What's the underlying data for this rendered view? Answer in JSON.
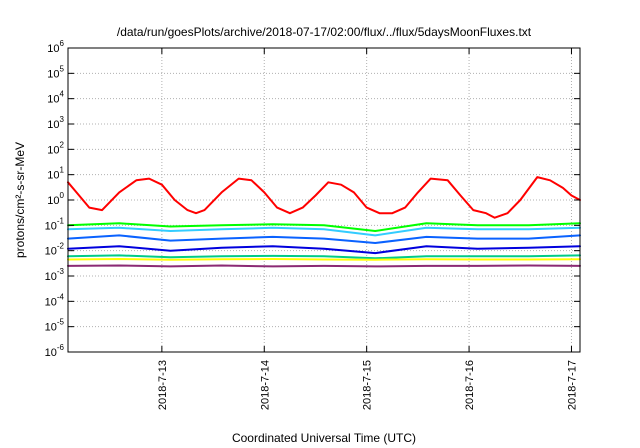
{
  "chart_data": {
    "type": "line",
    "title": "/data/run/goesPlots/archive/2018-07-17/02:00/flux/../flux/5daysMoonFluxes.txt",
    "xlabel": "Coordinated Universal Time (UTC)",
    "ylabel": "protons/cm²-s-sr-MeV",
    "y_scale": "log",
    "ylim": [
      "1e-6",
      "1e6"
    ],
    "xlim": [
      "2018-07-12 02:00",
      "2018-07-17 02:00"
    ],
    "x_tick_labels": [
      "2018-7-13",
      "2018-7-14",
      "2018-7-15",
      "2018-7-16",
      "2018-7-17"
    ],
    "grid": true,
    "series": [
      {
        "color": "#ff0000",
        "x": [
          "2018-07-12 02:00",
          "2018-07-12 04:00",
          "2018-07-12 07:00",
          "2018-07-12 10:00",
          "2018-07-12 14:00",
          "2018-07-12 18:00",
          "2018-07-12 21:00",
          "2018-07-13 00:00",
          "2018-07-13 03:00",
          "2018-07-13 06:00",
          "2018-07-13 08:00",
          "2018-07-13 10:00",
          "2018-07-13 14:00",
          "2018-07-13 18:00",
          "2018-07-13 21:00",
          "2018-07-14 00:00",
          "2018-07-14 03:00",
          "2018-07-14 06:00",
          "2018-07-14 09:00",
          "2018-07-14 12:00",
          "2018-07-14 15:00",
          "2018-07-14 18:00",
          "2018-07-14 21:00",
          "2018-07-15 00:00",
          "2018-07-15 03:00",
          "2018-07-15 06:00",
          "2018-07-15 09:00",
          "2018-07-15 12:00",
          "2018-07-15 15:00",
          "2018-07-15 19:00",
          "2018-07-15 22:00",
          "2018-07-16 01:00",
          "2018-07-16 04:00",
          "2018-07-16 06:00",
          "2018-07-16 09:00",
          "2018-07-16 12:00",
          "2018-07-16 16:00",
          "2018-07-16 19:00",
          "2018-07-16 22:00",
          "2018-07-17 00:00",
          "2018-07-17 02:00"
        ],
        "y": [
          5,
          2,
          0.5,
          0.4,
          2,
          6,
          7,
          4,
          1,
          0.4,
          0.3,
          0.4,
          2,
          7,
          6,
          2,
          0.5,
          0.3,
          0.5,
          1.5,
          5,
          4,
          2,
          0.5,
          0.3,
          0.3,
          0.5,
          2,
          7,
          6,
          1.5,
          0.4,
          0.3,
          0.2,
          0.3,
          1,
          8,
          6,
          3,
          1.5,
          1
        ]
      },
      {
        "color": "#00ff00",
        "x": [
          "2018-07-12 02:00",
          "2018-07-12 14:00",
          "2018-07-13 02:00",
          "2018-07-13 14:00",
          "2018-07-14 02:00",
          "2018-07-14 14:00",
          "2018-07-15 02:00",
          "2018-07-15 14:00",
          "2018-07-16 02:00",
          "2018-07-16 14:00",
          "2018-07-17 02:00"
        ],
        "y": [
          0.1,
          0.12,
          0.09,
          0.1,
          0.11,
          0.1,
          0.06,
          0.12,
          0.1,
          0.1,
          0.12
        ]
      },
      {
        "color": "#33ccff",
        "x": [
          "2018-07-12 02:00",
          "2018-07-12 14:00",
          "2018-07-13 02:00",
          "2018-07-13 14:00",
          "2018-07-14 02:00",
          "2018-07-14 14:00",
          "2018-07-15 02:00",
          "2018-07-15 14:00",
          "2018-07-16 02:00",
          "2018-07-16 14:00",
          "2018-07-17 02:00"
        ],
        "y": [
          0.07,
          0.08,
          0.06,
          0.07,
          0.08,
          0.07,
          0.04,
          0.08,
          0.07,
          0.07,
          0.08
        ]
      },
      {
        "color": "#0a62ff",
        "x": [
          "2018-07-12 02:00",
          "2018-07-12 14:00",
          "2018-07-13 02:00",
          "2018-07-13 14:00",
          "2018-07-14 02:00",
          "2018-07-14 14:00",
          "2018-07-15 02:00",
          "2018-07-15 14:00",
          "2018-07-16 02:00",
          "2018-07-16 14:00",
          "2018-07-17 02:00"
        ],
        "y": [
          0.03,
          0.04,
          0.025,
          0.03,
          0.035,
          0.03,
          0.02,
          0.035,
          0.03,
          0.03,
          0.04
        ]
      },
      {
        "color": "#0000dd",
        "x": [
          "2018-07-12 02:00",
          "2018-07-12 14:00",
          "2018-07-13 02:00",
          "2018-07-13 14:00",
          "2018-07-14 02:00",
          "2018-07-14 14:00",
          "2018-07-15 02:00",
          "2018-07-15 14:00",
          "2018-07-16 02:00",
          "2018-07-16 14:00",
          "2018-07-17 02:00"
        ],
        "y": [
          0.012,
          0.015,
          0.01,
          0.013,
          0.015,
          0.012,
          0.008,
          0.015,
          0.012,
          0.013,
          0.015
        ]
      },
      {
        "color": "#00cc88",
        "x": [
          "2018-07-12 02:00",
          "2018-07-12 14:00",
          "2018-07-13 02:00",
          "2018-07-13 14:00",
          "2018-07-14 02:00",
          "2018-07-14 14:00",
          "2018-07-15 02:00",
          "2018-07-15 14:00",
          "2018-07-16 02:00",
          "2018-07-16 14:00",
          "2018-07-17 02:00"
        ],
        "y": [
          0.006,
          0.0065,
          0.0055,
          0.006,
          0.0062,
          0.006,
          0.005,
          0.006,
          0.006,
          0.006,
          0.0065
        ]
      },
      {
        "color": "#ffff00",
        "x": [
          "2018-07-12 02:00",
          "2018-07-12 14:00",
          "2018-07-13 02:00",
          "2018-07-13 14:00",
          "2018-07-14 02:00",
          "2018-07-14 14:00",
          "2018-07-15 02:00",
          "2018-07-15 14:00",
          "2018-07-16 02:00",
          "2018-07-16 14:00",
          "2018-07-17 02:00"
        ],
        "y": [
          0.0045,
          0.0047,
          0.0044,
          0.0046,
          0.0047,
          0.0045,
          0.0044,
          0.0046,
          0.0045,
          0.0045,
          0.0046
        ]
      },
      {
        "color": "#8b2a74",
        "x": [
          "2018-07-12 02:00",
          "2018-07-12 14:00",
          "2018-07-13 02:00",
          "2018-07-13 14:00",
          "2018-07-14 02:00",
          "2018-07-14 14:00",
          "2018-07-15 02:00",
          "2018-07-15 14:00",
          "2018-07-16 02:00",
          "2018-07-16 14:00",
          "2018-07-17 02:00"
        ],
        "y": [
          0.0025,
          0.0026,
          0.0024,
          0.0026,
          0.0024,
          0.0025,
          0.0024,
          0.0025,
          0.0025,
          0.0026,
          0.0025
        ]
      }
    ]
  }
}
